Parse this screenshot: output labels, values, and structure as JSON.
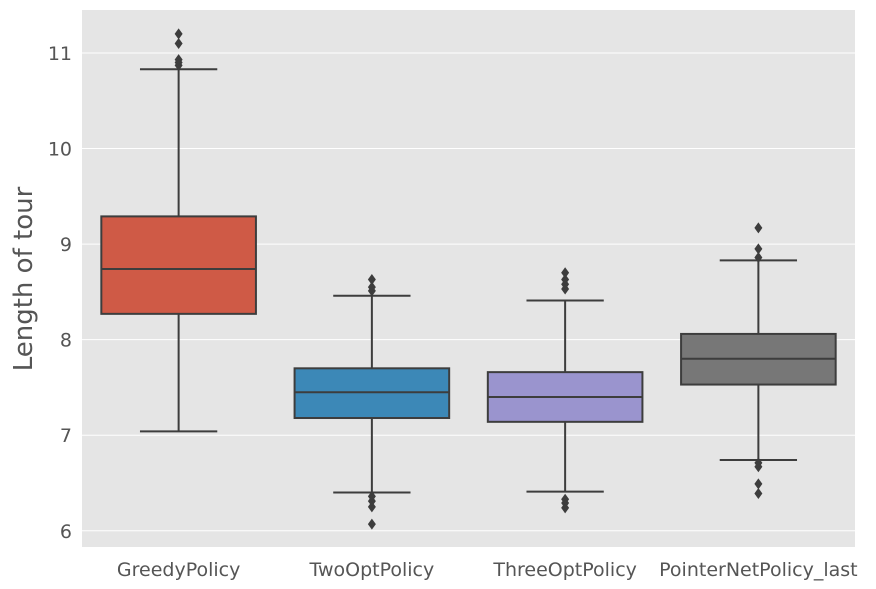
{
  "chart_data": {
    "type": "box",
    "title": "",
    "xlabel": "",
    "ylabel": "Length of tour",
    "ylim": [
      5.83,
      11.45
    ],
    "yticks": [
      6,
      7,
      8,
      9,
      10,
      11
    ],
    "ytick_labels": [
      "6",
      "7",
      "8",
      "9",
      "10",
      "11"
    ],
    "grid": true,
    "categories": [
      "GreedyPolicy",
      "TwoOptPolicy",
      "ThreeOptPolicy",
      "PointerNetPolicy_last"
    ],
    "boxes": [
      {
        "name": "GreedyPolicy",
        "color": "#cf5a46",
        "q1": 8.27,
        "median": 8.74,
        "q3": 9.29,
        "whisker_low": 7.04,
        "whisker_high": 10.83,
        "outliers": [
          10.87,
          10.9,
          10.93,
          11.1,
          11.2
        ]
      },
      {
        "name": "TwoOptPolicy",
        "color": "#3c88b7",
        "q1": 7.18,
        "median": 7.45,
        "q3": 7.7,
        "whisker_low": 6.4,
        "whisker_high": 8.46,
        "outliers": [
          6.07,
          6.25,
          6.31,
          6.36,
          8.51,
          8.55,
          8.63
        ]
      },
      {
        "name": "ThreeOptPolicy",
        "color": "#9a94ce",
        "q1": 7.14,
        "median": 7.4,
        "q3": 7.66,
        "whisker_low": 6.41,
        "whisker_high": 8.41,
        "outliers": [
          6.24,
          6.29,
          6.33,
          8.53,
          8.58,
          8.63,
          8.7
        ]
      },
      {
        "name": "PointerNetPolicy_last",
        "color": "#777777",
        "q1": 7.53,
        "median": 7.8,
        "q3": 8.06,
        "whisker_low": 6.74,
        "whisker_high": 8.83,
        "outliers": [
          6.39,
          6.49,
          6.67,
          6.71,
          8.86,
          8.95,
          9.17
        ]
      }
    ]
  },
  "colors": {
    "background": "#e5e5e5",
    "grid": "#ffffff",
    "box_edge": "#3d3d3d",
    "text": "#555555"
  }
}
